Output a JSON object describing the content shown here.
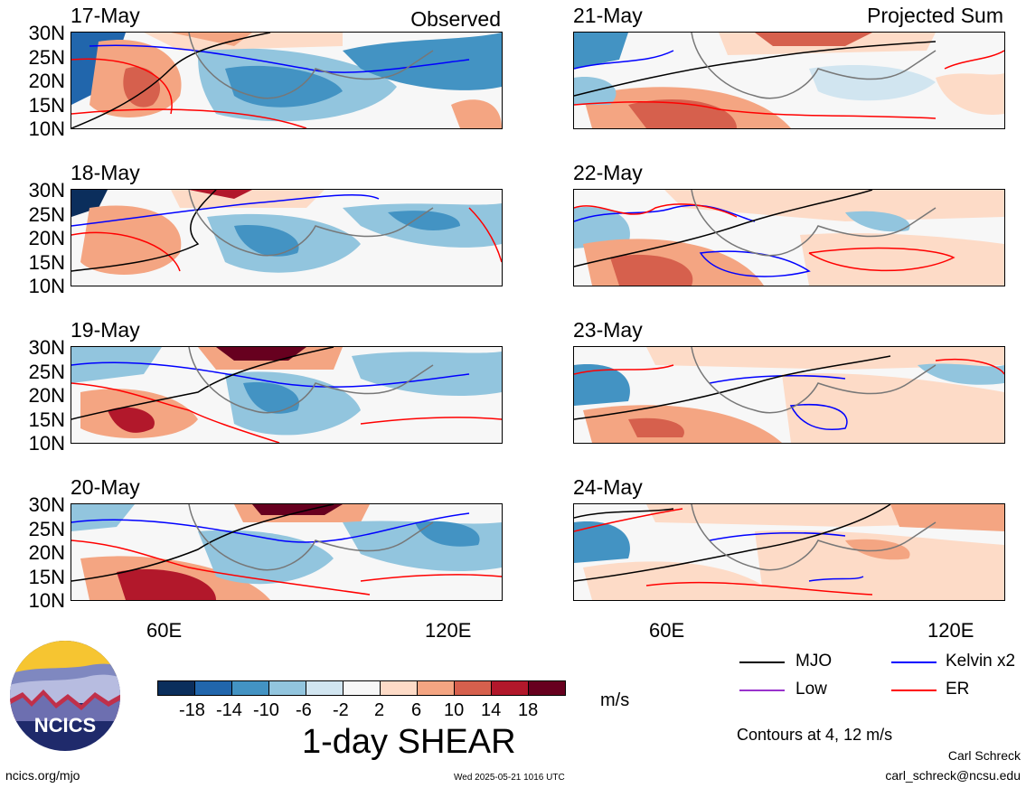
{
  "headers": {
    "observed": "Observed",
    "projected": "Projected Sum"
  },
  "latitude_labels": [
    "30N",
    "25N",
    "20N",
    "15N",
    "10N"
  ],
  "longitude_labels": [
    "60E",
    "120E"
  ],
  "panels_left": [
    "17-May",
    "18-May",
    "19-May",
    "20-May"
  ],
  "panels_right": [
    "21-May",
    "22-May",
    "23-May",
    "24-May"
  ],
  "colorbar": {
    "ticks": [
      "-18",
      "-14",
      "-10",
      "-6",
      "-2",
      "2",
      "6",
      "10",
      "14",
      "18"
    ],
    "colors": [
      "#0b2e5c",
      "#2166ac",
      "#4393c3",
      "#92c5de",
      "#d1e5f0",
      "#f7f7f7",
      "#fddbc7",
      "#f4a582",
      "#d6604d",
      "#b2182b",
      "#67001f"
    ],
    "units": "m/s",
    "title": "1-day SHEAR"
  },
  "legend": {
    "mjo": "MJO",
    "kelvin": "Kelvin x2",
    "low": "Low",
    "er": "ER",
    "colors": {
      "mjo": "#000000",
      "kelvin": "#0000ff",
      "low": "#9933cc",
      "er": "#ff0000"
    }
  },
  "contours_note": "Contours at 4, 12 m/s",
  "footer": {
    "logo_text": "NCICS",
    "url": "ncics.org/mjo",
    "timestamp": "Wed 2025-05-21 1016 UTC",
    "author": "Carl Schreck",
    "email": "carl_schreck@ncsu.edu"
  }
}
